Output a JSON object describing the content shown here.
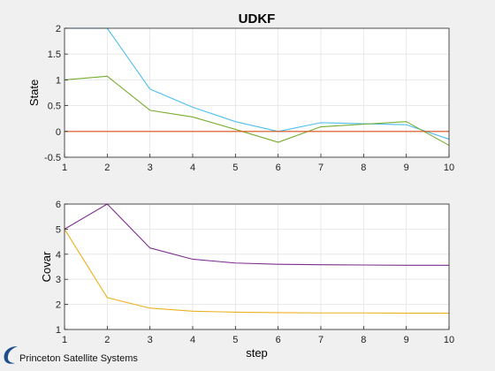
{
  "chart_data": [
    {
      "type": "line",
      "title": "UDKF",
      "xlabel": "",
      "ylabel": "State",
      "x": [
        1,
        2,
        3,
        4,
        5,
        6,
        7,
        8,
        9,
        10
      ],
      "xlim": [
        1,
        10
      ],
      "ylim": [
        -0.5,
        2
      ],
      "xticks": [
        1,
        2,
        3,
        4,
        5,
        6,
        7,
        8,
        9,
        10
      ],
      "yticks": [
        -0.5,
        0,
        0.5,
        1,
        1.5,
        2
      ],
      "ytick_labels": [
        "-0.5",
        "0",
        "0.5",
        "1",
        "1.5",
        "2"
      ],
      "grid": true,
      "series": [
        {
          "color": "#4dbeee",
          "values": [
            2.0,
            2.0,
            0.82,
            0.47,
            0.19,
            0.0,
            0.17,
            0.15,
            0.13,
            -0.15
          ]
        },
        {
          "color": "#77ac30",
          "values": [
            1.0,
            1.07,
            0.41,
            0.28,
            0.04,
            -0.21,
            0.09,
            0.14,
            0.19,
            -0.27
          ]
        },
        {
          "color": "#d95319",
          "values": [
            0,
            0,
            0,
            0,
            0,
            0,
            0,
            0,
            0,
            0
          ]
        }
      ]
    },
    {
      "type": "line",
      "title": "",
      "xlabel": "step",
      "ylabel": "Covar",
      "x": [
        1,
        2,
        3,
        4,
        5,
        6,
        7,
        8,
        9,
        10
      ],
      "xlim": [
        1,
        10
      ],
      "ylim": [
        1,
        6
      ],
      "xticks": [
        1,
        2,
        3,
        4,
        5,
        6,
        7,
        8,
        9,
        10
      ],
      "yticks": [
        1,
        2,
        3,
        4,
        5,
        6
      ],
      "ytick_labels": [
        "1",
        "2",
        "3",
        "4",
        "5",
        "6"
      ],
      "grid": true,
      "series": [
        {
          "color": "#7e2f8e",
          "values": [
            5.0,
            6.0,
            4.25,
            3.8,
            3.65,
            3.6,
            3.58,
            3.57,
            3.56,
            3.56
          ]
        },
        {
          "color": "#edb120",
          "values": [
            5.0,
            2.27,
            1.85,
            1.73,
            1.69,
            1.67,
            1.66,
            1.66,
            1.65,
            1.65
          ]
        }
      ]
    }
  ],
  "branding": {
    "text": "Princeton Satellite Systems",
    "logo_icon": "swoosh-logo-icon",
    "logo_color": "#1f4e8c"
  }
}
